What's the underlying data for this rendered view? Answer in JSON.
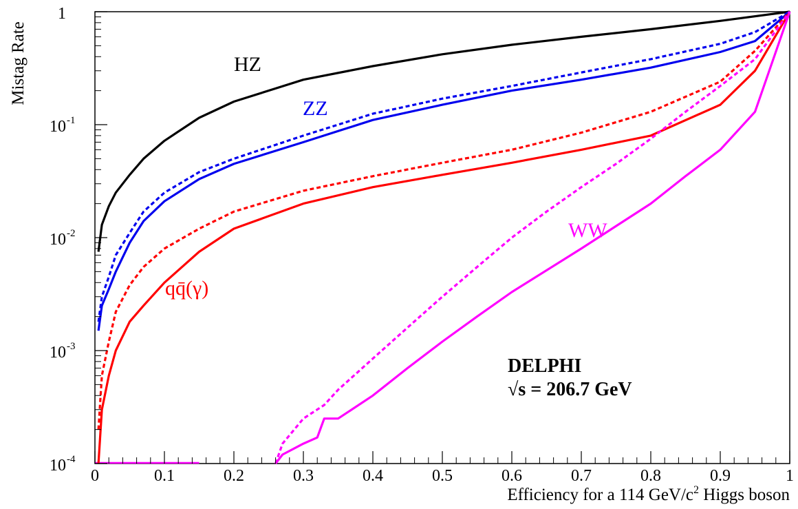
{
  "chart_data": {
    "type": "line",
    "title": "",
    "xlabel": "Efficiency for a 114 GeV/c",
    "xlabel_sup": "2",
    "xlabel_tail": " Higgs boson",
    "ylabel": "Mistag Rate",
    "xlim": [
      0,
      1
    ],
    "ylim": [
      0.0001,
      1
    ],
    "y_scale": "log",
    "grid": false,
    "x_ticks": [
      "0",
      "0.1",
      "0.2",
      "0.3",
      "0.4",
      "0.5",
      "0.6",
      "0.7",
      "0.8",
      "0.9",
      "1"
    ],
    "y_ticks": [
      {
        "value": 1,
        "base": "1",
        "exp": ""
      },
      {
        "value": 0.1,
        "base": "10",
        "exp": "-1"
      },
      {
        "value": 0.01,
        "base": "10",
        "exp": "-2"
      },
      {
        "value": 0.001,
        "base": "10",
        "exp": "-3"
      },
      {
        "value": 0.0001,
        "base": "10",
        "exp": "-4"
      }
    ],
    "annotations": {
      "experiment": "DELPHI",
      "energy": "√s = 206.7 GeV"
    },
    "series": [
      {
        "name": "HZ",
        "label": "HZ",
        "color": "#000000",
        "style": "solid",
        "x": [
          0.005,
          0.01,
          0.02,
          0.03,
          0.05,
          0.07,
          0.1,
          0.15,
          0.2,
          0.3,
          0.4,
          0.5,
          0.6,
          0.7,
          0.8,
          0.9,
          1.0
        ],
        "y": [
          0.0075,
          0.013,
          0.019,
          0.025,
          0.036,
          0.05,
          0.072,
          0.115,
          0.16,
          0.25,
          0.33,
          0.42,
          0.51,
          0.6,
          0.7,
          0.83,
          1.0
        ]
      },
      {
        "name": "ZZ",
        "label": "ZZ",
        "color": "#0000ee",
        "style": "solid",
        "x": [
          0.005,
          0.01,
          0.02,
          0.03,
          0.05,
          0.07,
          0.1,
          0.15,
          0.2,
          0.3,
          0.4,
          0.5,
          0.6,
          0.7,
          0.8,
          0.9,
          0.95,
          1.0
        ],
        "y": [
          0.0015,
          0.0025,
          0.0035,
          0.005,
          0.009,
          0.014,
          0.021,
          0.033,
          0.045,
          0.07,
          0.11,
          0.15,
          0.2,
          0.25,
          0.32,
          0.44,
          0.55,
          1.0
        ]
      },
      {
        "name": "ZZ (dotted)",
        "label": "",
        "color": "#0000ee",
        "style": "dotted",
        "x": [
          0.005,
          0.01,
          0.02,
          0.03,
          0.05,
          0.07,
          0.1,
          0.15,
          0.2,
          0.3,
          0.4,
          0.5,
          0.6,
          0.7,
          0.8,
          0.9,
          0.95,
          1.0
        ],
        "y": [
          0.0018,
          0.003,
          0.0045,
          0.007,
          0.011,
          0.017,
          0.025,
          0.038,
          0.05,
          0.08,
          0.125,
          0.17,
          0.22,
          0.29,
          0.38,
          0.52,
          0.66,
          1.0
        ]
      },
      {
        "name": "qq(γ)",
        "label": "qq̄(γ)",
        "color": "#ff0000",
        "style": "solid",
        "x": [
          0.005,
          0.01,
          0.02,
          0.03,
          0.05,
          0.07,
          0.1,
          0.15,
          0.2,
          0.3,
          0.4,
          0.5,
          0.6,
          0.7,
          0.8,
          0.9,
          0.95,
          1.0
        ],
        "y": [
          0.0001,
          0.0003,
          0.0006,
          0.001,
          0.0018,
          0.0025,
          0.004,
          0.0075,
          0.012,
          0.02,
          0.028,
          0.036,
          0.046,
          0.06,
          0.08,
          0.15,
          0.3,
          1.0
        ]
      },
      {
        "name": "qq(γ) (dotted)",
        "label": "",
        "color": "#ff0000",
        "style": "dotted",
        "x": [
          0.005,
          0.01,
          0.02,
          0.03,
          0.05,
          0.07,
          0.1,
          0.15,
          0.2,
          0.3,
          0.4,
          0.5,
          0.6,
          0.7,
          0.8,
          0.9,
          0.95,
          1.0
        ],
        "y": [
          0.0002,
          0.0006,
          0.0012,
          0.0022,
          0.0038,
          0.0055,
          0.008,
          0.012,
          0.017,
          0.026,
          0.035,
          0.046,
          0.06,
          0.085,
          0.13,
          0.24,
          0.45,
          1.0
        ]
      },
      {
        "name": "WW",
        "label": "WW",
        "color": "#ff00ff",
        "style": "solid",
        "x": [
          0.26,
          0.27,
          0.3,
          0.32,
          0.33,
          0.35,
          0.4,
          0.45,
          0.5,
          0.55,
          0.6,
          0.7,
          0.8,
          0.85,
          0.9,
          0.95,
          1.0
        ],
        "y": [
          0.0001,
          0.00012,
          0.00015,
          0.00017,
          0.00025,
          0.00025,
          0.0004,
          0.0007,
          0.0012,
          0.002,
          0.0033,
          0.008,
          0.02,
          0.035,
          0.06,
          0.13,
          1.0
        ]
      },
      {
        "name": "WW (dotted)",
        "label": "",
        "color": "#ff00ff",
        "style": "dotted",
        "x": [
          0.26,
          0.27,
          0.3,
          0.33,
          0.35,
          0.4,
          0.45,
          0.5,
          0.55,
          0.6,
          0.65,
          0.7,
          0.75,
          0.8,
          0.85,
          0.9,
          0.95,
          1.0
        ],
        "y": [
          0.0001,
          0.00015,
          0.00025,
          0.00033,
          0.00045,
          0.00085,
          0.0016,
          0.003,
          0.0055,
          0.01,
          0.017,
          0.028,
          0.045,
          0.075,
          0.13,
          0.22,
          0.38,
          1.0
        ]
      }
    ],
    "baseline_segment": {
      "color": "#ff00ff",
      "x": [
        0,
        0.15
      ],
      "y": [
        0.0001,
        0.0001
      ]
    }
  }
}
